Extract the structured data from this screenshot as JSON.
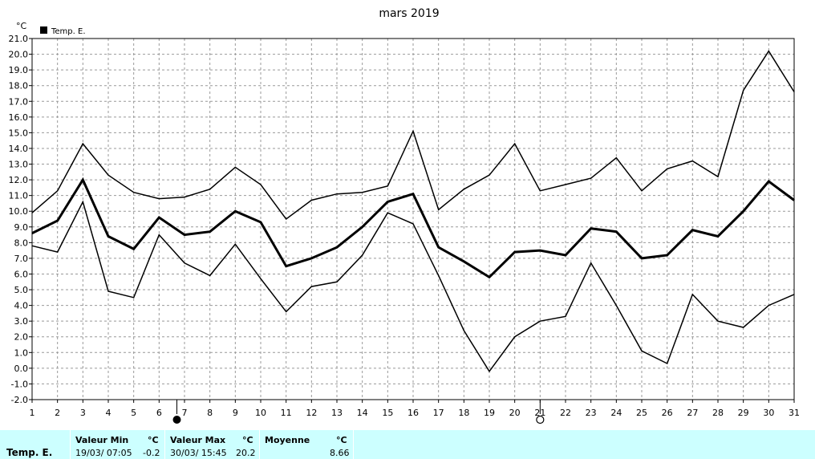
{
  "chart_data": {
    "type": "line",
    "title": "mars 2019",
    "ylabel": "°C",
    "legend": {
      "label": "Temp. E.",
      "placement": "top-left"
    },
    "ylim": [
      -2.0,
      21.0
    ],
    "ytick_step": 1.0,
    "yticks": [
      "-2.0",
      "-1.0",
      "0.0",
      "1.0",
      "2.0",
      "3.0",
      "4.0",
      "5.0",
      "6.0",
      "7.0",
      "8.0",
      "9.0",
      "10.0",
      "11.0",
      "12.0",
      "13.0",
      "14.0",
      "15.0",
      "16.0",
      "17.0",
      "18.0",
      "19.0",
      "20.0",
      "21.0"
    ],
    "x": [
      1,
      2,
      3,
      4,
      5,
      6,
      7,
      8,
      9,
      10,
      11,
      12,
      13,
      14,
      15,
      16,
      17,
      18,
      19,
      20,
      21,
      22,
      23,
      24,
      25,
      26,
      27,
      28,
      29,
      30,
      31
    ],
    "xlim": [
      1,
      31
    ],
    "grid": true,
    "series": [
      {
        "role": "max",
        "width": 1.5,
        "values": [
          9.9,
          11.3,
          14.3,
          12.3,
          11.2,
          10.8,
          10.9,
          11.4,
          12.8,
          11.7,
          9.5,
          10.7,
          11.1,
          11.2,
          11.6,
          15.1,
          10.1,
          11.4,
          12.3,
          14.3,
          11.3,
          11.7,
          12.1,
          13.4,
          11.3,
          12.7,
          13.2,
          12.2,
          17.7,
          20.2,
          17.6
        ]
      },
      {
        "role": "mean",
        "width": 3,
        "values": [
          8.6,
          9.4,
          12.0,
          8.4,
          7.6,
          9.6,
          8.5,
          8.7,
          10.0,
          9.3,
          6.5,
          7.0,
          7.7,
          9.0,
          10.6,
          11.1,
          7.7,
          6.8,
          5.8,
          7.4,
          7.5,
          7.2,
          8.9,
          8.7,
          7.0,
          7.2,
          8.8,
          8.4,
          10.0,
          11.9,
          10.7
        ]
      },
      {
        "role": "min",
        "width": 1.5,
        "values": [
          7.8,
          7.4,
          10.6,
          4.9,
          4.5,
          8.5,
          6.7,
          5.9,
          7.9,
          5.7,
          3.6,
          5.2,
          5.5,
          7.2,
          9.9,
          9.2,
          5.9,
          2.4,
          -0.2,
          2.0,
          3.0,
          3.3,
          6.7,
          4.0,
          1.1,
          0.3,
          4.7,
          3.0,
          2.6,
          4.0,
          4.7
        ]
      }
    ],
    "moon_markers": [
      {
        "phase": "new",
        "x": 6.7
      },
      {
        "phase": "full",
        "x": 21.0
      }
    ]
  },
  "stats": {
    "series_name": "Temp. E.",
    "min": {
      "header": "Valeur Min",
      "unit": "°C",
      "when": "19/03/  07:05",
      "value": "-0.2"
    },
    "max": {
      "header": "Valeur Max",
      "unit": "°C",
      "when": "30/03/  15:45",
      "value": "20.2"
    },
    "avg": {
      "header": "Moyenne",
      "unit": "°C",
      "value": "8.66"
    }
  }
}
